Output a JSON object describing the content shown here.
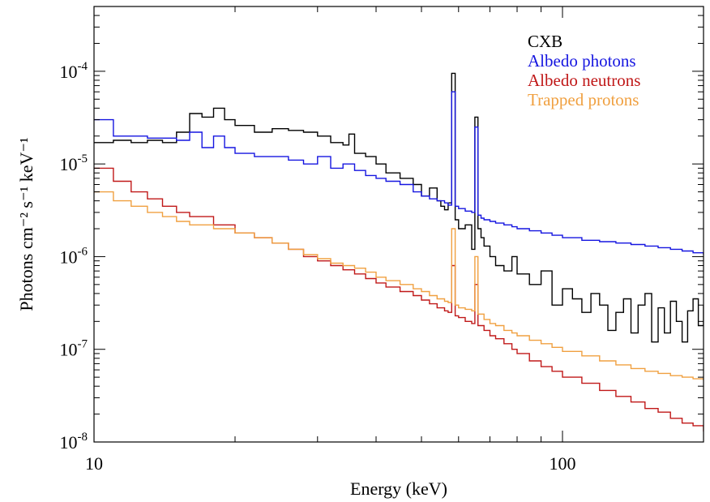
{
  "chart_data": {
    "type": "line",
    "title": "",
    "xlabel": "Energy (keV)",
    "ylabel": "Photons cm⁻² s⁻¹ keV⁻¹",
    "x_scale": "log",
    "y_scale": "log",
    "xlim": [
      10,
      200
    ],
    "ylim": [
      1e-08,
      0.0005
    ],
    "grid": false,
    "legend_position": "top-right",
    "x_ticks": [
      {
        "value": 10,
        "label": "10"
      },
      {
        "value": 100,
        "label": "100"
      }
    ],
    "y_ticks": [
      {
        "value": 1e-08,
        "base": "10",
        "exp": "-8"
      },
      {
        "value": 1e-07,
        "base": "10",
        "exp": "-7"
      },
      {
        "value": 1e-06,
        "base": "10",
        "exp": "-6"
      },
      {
        "value": 1e-05,
        "base": "10",
        "exp": "-5"
      },
      {
        "value": 0.0001,
        "base": "10",
        "exp": "-4"
      }
    ],
    "series": [
      {
        "name": "CXB",
        "color": "#000000",
        "x": [
          10,
          11,
          12,
          13,
          14,
          15,
          16,
          17,
          18,
          19,
          20,
          22,
          24,
          26,
          28,
          30,
          32,
          34,
          35,
          36,
          38,
          40,
          42,
          45,
          48,
          50,
          52,
          54,
          55,
          56,
          57,
          58,
          59,
          60,
          62,
          64,
          65,
          66,
          67,
          68,
          70,
          72,
          75,
          78,
          80,
          85,
          90,
          95,
          100,
          105,
          110,
          115,
          120,
          125,
          130,
          135,
          140,
          145,
          150,
          155,
          160,
          165,
          170,
          175,
          180,
          185,
          190,
          195,
          200
        ],
        "y": [
          1.7e-05,
          1.8e-05,
          1.7e-05,
          1.8e-05,
          1.7e-05,
          2.2e-05,
          3.5e-05,
          3.2e-05,
          4e-05,
          3e-05,
          2.6e-05,
          2.2e-05,
          2.4e-05,
          2.3e-05,
          2.2e-05,
          2e-05,
          1.7e-05,
          1.6e-05,
          2.1e-05,
          1.3e-05,
          1.2e-05,
          1e-05,
          8e-06,
          7e-06,
          6e-06,
          4.5e-06,
          5.5e-06,
          4e-06,
          3.5e-06,
          3.2e-06,
          3.8e-06,
          9.5e-05,
          2.5e-06,
          2e-06,
          2.2e-06,
          1.2e-06,
          3.2e-05,
          2e-06,
          1.6e-06,
          1.3e-06,
          1e-06,
          8e-07,
          7e-07,
          1e-06,
          6.5e-07,
          5e-07,
          7e-07,
          3e-07,
          4.5e-07,
          3.5e-07,
          2.5e-07,
          4e-07,
          3e-07,
          1.6e-07,
          2.5e-07,
          3.5e-07,
          1.5e-07,
          3e-07,
          4e-07,
          1.2e-07,
          2.8e-07,
          1.5e-07,
          3.3e-07,
          2e-07,
          1.2e-07,
          2.6e-07,
          3.5e-07,
          1.8e-07,
          3e-07
        ]
      },
      {
        "name": "Albedo photons",
        "color": "#1515e0",
        "x": [
          10,
          11,
          12,
          13,
          14,
          15,
          16,
          17,
          18,
          19,
          20,
          22,
          24,
          26,
          28,
          30,
          32,
          34,
          36,
          38,
          40,
          42,
          45,
          48,
          50,
          52,
          54,
          56,
          57,
          58,
          59,
          60,
          62,
          64,
          65,
          66,
          67,
          68,
          70,
          72,
          75,
          78,
          80,
          85,
          90,
          95,
          100,
          110,
          120,
          130,
          140,
          150,
          160,
          170,
          180,
          190,
          200
        ],
        "y": [
          3e-05,
          2e-05,
          2e-05,
          1.9e-05,
          1.9e-05,
          1.8e-05,
          2.2e-05,
          1.5e-05,
          2e-05,
          1.5e-05,
          1.3e-05,
          1.2e-05,
          1.2e-05,
          1.1e-05,
          1e-05,
          1.2e-05,
          9e-06,
          1e-05,
          8.5e-06,
          7.5e-06,
          7e-06,
          6.5e-06,
          6e-06,
          5e-06,
          4.5e-06,
          4.2e-06,
          4e-06,
          3.8e-06,
          3.6e-06,
          6e-05,
          3.5e-06,
          3.3e-06,
          3.1e-06,
          3e-06,
          2.5e-05,
          2.8e-06,
          2.6e-06,
          2.5e-06,
          2.4e-06,
          2.3e-06,
          2.2e-06,
          2.1e-06,
          2e-06,
          1.9e-06,
          1.8e-06,
          1.7e-06,
          1.6e-06,
          1.5e-06,
          1.45e-06,
          1.4e-06,
          1.35e-06,
          1.3e-06,
          1.25e-06,
          1.2e-06,
          1.15e-06,
          1.1e-06,
          1.05e-06
        ]
      },
      {
        "name": "Albedo neutrons",
        "color": "#c01818",
        "x": [
          10,
          11,
          12,
          13,
          14,
          15,
          16,
          18,
          20,
          22,
          24,
          26,
          28,
          30,
          32,
          34,
          36,
          38,
          40,
          42,
          45,
          48,
          50,
          52,
          54,
          56,
          57,
          58,
          59,
          60,
          62,
          64,
          65,
          66,
          68,
          70,
          72,
          75,
          78,
          80,
          85,
          90,
          95,
          100,
          110,
          120,
          130,
          140,
          150,
          160,
          170,
          180,
          190,
          200
        ],
        "y": [
          9e-06,
          6.5e-06,
          5e-06,
          4.2e-06,
          3.5e-06,
          3e-06,
          2.7e-06,
          2.2e-06,
          1.8e-06,
          1.6e-06,
          1.4e-06,
          1.2e-06,
          1e-06,
          9e-07,
          8e-07,
          7.2e-07,
          6.5e-07,
          5.8e-07,
          5.2e-07,
          4.7e-07,
          4.2e-07,
          3.8e-07,
          3.4e-07,
          3.1e-07,
          2.8e-07,
          2.6e-07,
          2.5e-07,
          8e-07,
          2.3e-07,
          2.2e-07,
          2e-07,
          1.9e-07,
          5e-07,
          1.8e-07,
          1.6e-07,
          1.4e-07,
          1.3e-07,
          1.15e-07,
          1e-07,
          9e-08,
          7.5e-08,
          6.5e-08,
          5.8e-08,
          5e-08,
          4.3e-08,
          3.6e-08,
          3.1e-08,
          2.7e-08,
          2.3e-08,
          2.1e-08,
          1.8e-08,
          1.6e-08,
          1.5e-08,
          1.3e-08
        ]
      },
      {
        "name": "Trapped protons",
        "color": "#f0a040",
        "x": [
          10,
          11,
          12,
          13,
          14,
          15,
          16,
          18,
          20,
          22,
          24,
          26,
          28,
          30,
          32,
          34,
          36,
          38,
          40,
          42,
          45,
          48,
          50,
          52,
          54,
          56,
          57,
          58,
          59,
          60,
          62,
          64,
          65,
          66,
          68,
          70,
          72,
          75,
          78,
          80,
          85,
          90,
          95,
          100,
          110,
          120,
          130,
          140,
          150,
          160,
          170,
          180,
          190,
          200
        ],
        "y": [
          5e-06,
          4e-06,
          3.5e-06,
          3e-06,
          2.7e-06,
          2.4e-06,
          2.2e-06,
          2e-06,
          1.8e-06,
          1.6e-06,
          1.4e-06,
          1.2e-06,
          1.05e-06,
          9.5e-07,
          8.5e-07,
          8e-07,
          7.5e-07,
          6.8e-07,
          6e-07,
          5.5e-07,
          5e-07,
          4.5e-07,
          4.2e-07,
          3.8e-07,
          3.5e-07,
          3.3e-07,
          3.2e-07,
          2e-06,
          3e-07,
          2.8e-07,
          2.7e-07,
          2.6e-07,
          1e-06,
          2.4e-07,
          2.1e-07,
          1.9e-07,
          1.8e-07,
          1.6e-07,
          1.5e-07,
          1.4e-07,
          1.25e-07,
          1.15e-07,
          1.05e-07,
          9.5e-08,
          8.5e-08,
          7.5e-08,
          6.8e-08,
          6.2e-08,
          5.8e-08,
          5.5e-08,
          5.2e-08,
          5e-08,
          4.8e-08,
          4.6e-08
        ]
      }
    ]
  }
}
